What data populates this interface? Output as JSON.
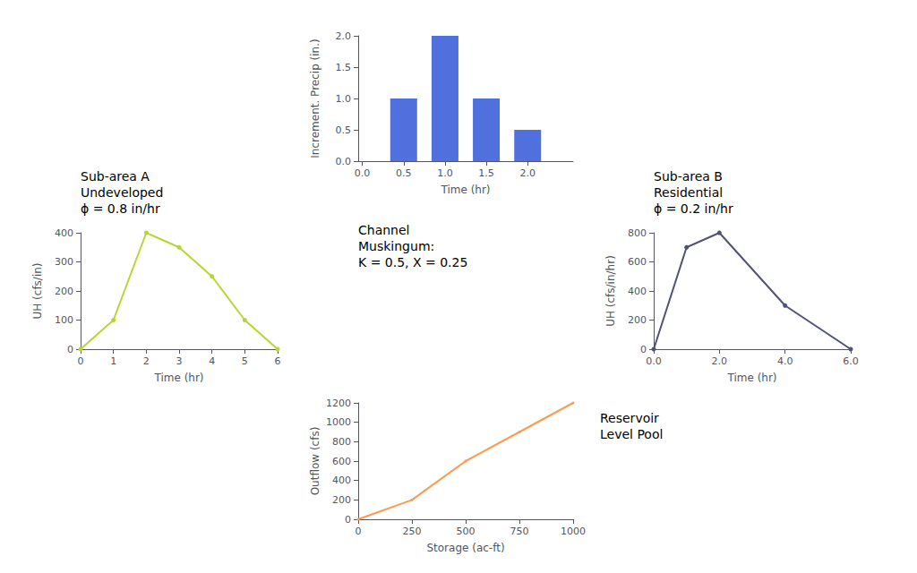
{
  "chart_data": [
    {
      "type": "bar",
      "xlabel": "Time (hr)",
      "ylabel": "Increment. Precip (in.)",
      "x": [
        0.0,
        0.5,
        1.0,
        1.5,
        2.0
      ],
      "values": [
        0.0,
        1.0,
        2.0,
        1.0,
        0.5
      ],
      "xlim": [
        -0.05,
        2.55
      ],
      "xticks": [
        {
          "value": 0,
          "label": "0.0"
        },
        {
          "value": 0.5,
          "label": "0.5"
        },
        {
          "value": 1,
          "label": "1.0"
        },
        {
          "value": 1.5,
          "label": "1.5"
        },
        {
          "value": 2,
          "label": "2.0"
        }
      ],
      "ylim": [
        0,
        2
      ],
      "yticks": [
        {
          "value": 0,
          "label": "0.0"
        },
        {
          "value": 0.5,
          "label": "0.5"
        },
        {
          "value": 1,
          "label": "1.0"
        },
        {
          "value": 1.5,
          "label": "1.5"
        },
        {
          "value": 2,
          "label": "2.0"
        }
      ],
      "grid": false
    },
    {
      "type": "line",
      "xlabel": "Time (hr)",
      "ylabel": "UH (cfs/in)",
      "x": [
        0,
        1,
        2,
        3,
        4,
        5,
        6
      ],
      "values": [
        0,
        100,
        400,
        350,
        250,
        100,
        0
      ],
      "xlim": [
        0,
        6
      ],
      "xticks": [
        0,
        1,
        2,
        3,
        4,
        5,
        6
      ],
      "ylim": [
        0,
        400
      ],
      "yticks": [
        0,
        100,
        200,
        300,
        400
      ],
      "marker": "circle",
      "grid": false,
      "annotations": [
        "Sub-area A",
        "Undeveloped",
        "ϕ = 0.8 in/hr"
      ]
    },
    {
      "type": "line",
      "xlabel": "Time (hr)",
      "ylabel": "UH (cfs/in/hr)",
      "x": [
        0.0,
        1.0,
        2.0,
        4.0,
        6.0
      ],
      "values": [
        0,
        700,
        800,
        300,
        0
      ],
      "xlim": [
        0,
        6
      ],
      "xticks": [
        {
          "value": 0,
          "label": "0.0"
        },
        {
          "value": 2,
          "label": "2.0"
        },
        {
          "value": 4,
          "label": "4.0"
        },
        {
          "value": 6,
          "label": "6.0"
        }
      ],
      "ylim": [
        0,
        800
      ],
      "yticks": [
        0,
        200,
        400,
        600,
        800
      ],
      "marker": "circle",
      "grid": false,
      "annotations": [
        "Sub-area B",
        "Residential",
        "ϕ = 0.2 in/hr"
      ]
    },
    {
      "type": "line",
      "xlabel": "Storage (ac-ft)",
      "ylabel": "Outflow (cfs)",
      "x": [
        0,
        250,
        500,
        750,
        1000
      ],
      "values": [
        0,
        200,
        600,
        900,
        1200
      ],
      "xlim": [
        0,
        1000
      ],
      "xticks": [
        0,
        250,
        500,
        750,
        1000
      ],
      "ylim": [
        0,
        1200
      ],
      "yticks": [
        0,
        200,
        400,
        600,
        800,
        1000,
        1200
      ],
      "marker": "point",
      "grid": false,
      "annotations": [
        "Channel",
        "Muskingum:",
        "K = 0.5, X = 0.25",
        "Reservoir",
        "Level Pool"
      ]
    }
  ]
}
